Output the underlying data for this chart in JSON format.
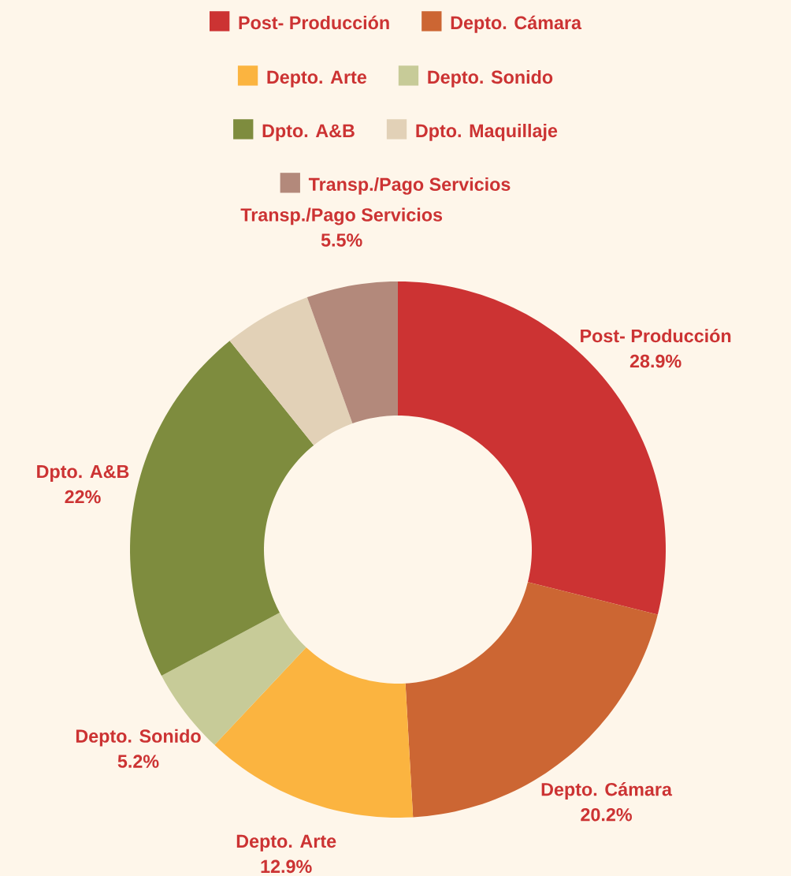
{
  "chart_data": {
    "type": "donut",
    "categories": [
      "Post- Producción",
      "Depto. Cámara",
      "Depto. Arte",
      "Depto. Sonido",
      "Dpto. A&B",
      "Dpto. Maquillaje",
      "Transp./Pago Servicios"
    ],
    "values": [
      28.9,
      20.2,
      12.9,
      5.2,
      22,
      5.3,
      5.5
    ],
    "colors": [
      "#cc3333",
      "#cc6633",
      "#fbb440",
      "#c7cb98",
      "#7e8c3e",
      "#e2d1b7",
      "#b3897b"
    ],
    "value_labels": [
      "28.9%",
      "20.2%",
      "12.9%",
      "5.2%",
      "22%",
      null,
      "5.5%"
    ],
    "legend": "top"
  }
}
